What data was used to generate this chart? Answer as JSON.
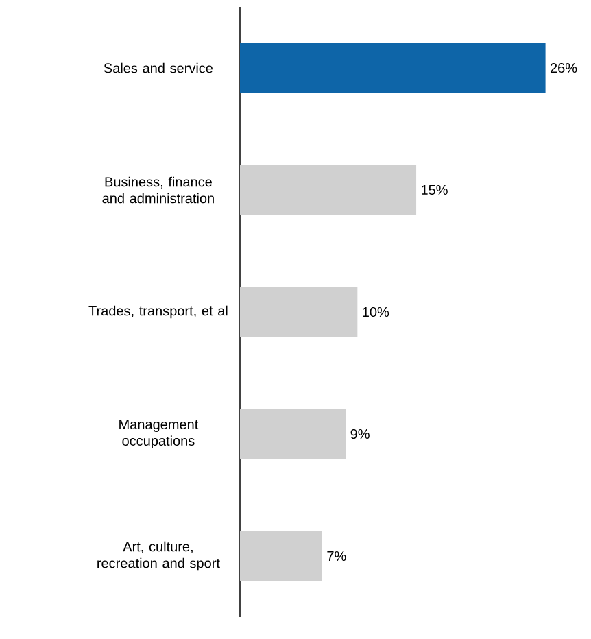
{
  "chart_data": {
    "type": "bar",
    "orientation": "horizontal",
    "categories": [
      "Sales and service",
      "Business, finance and administration",
      "Trades, transport, et al",
      "Management occupations",
      "Art, culture, recreation and sport"
    ],
    "values": [
      26,
      15,
      10,
      9,
      7
    ],
    "colors": [
      "#0e65a8",
      "#d0d0d0",
      "#d0d0d0",
      "#d0d0d0",
      "#d0d0d0"
    ],
    "value_labels": [
      "26%",
      "15%",
      "10%",
      "9%",
      "7%"
    ],
    "tick_labels": "y"
  }
}
